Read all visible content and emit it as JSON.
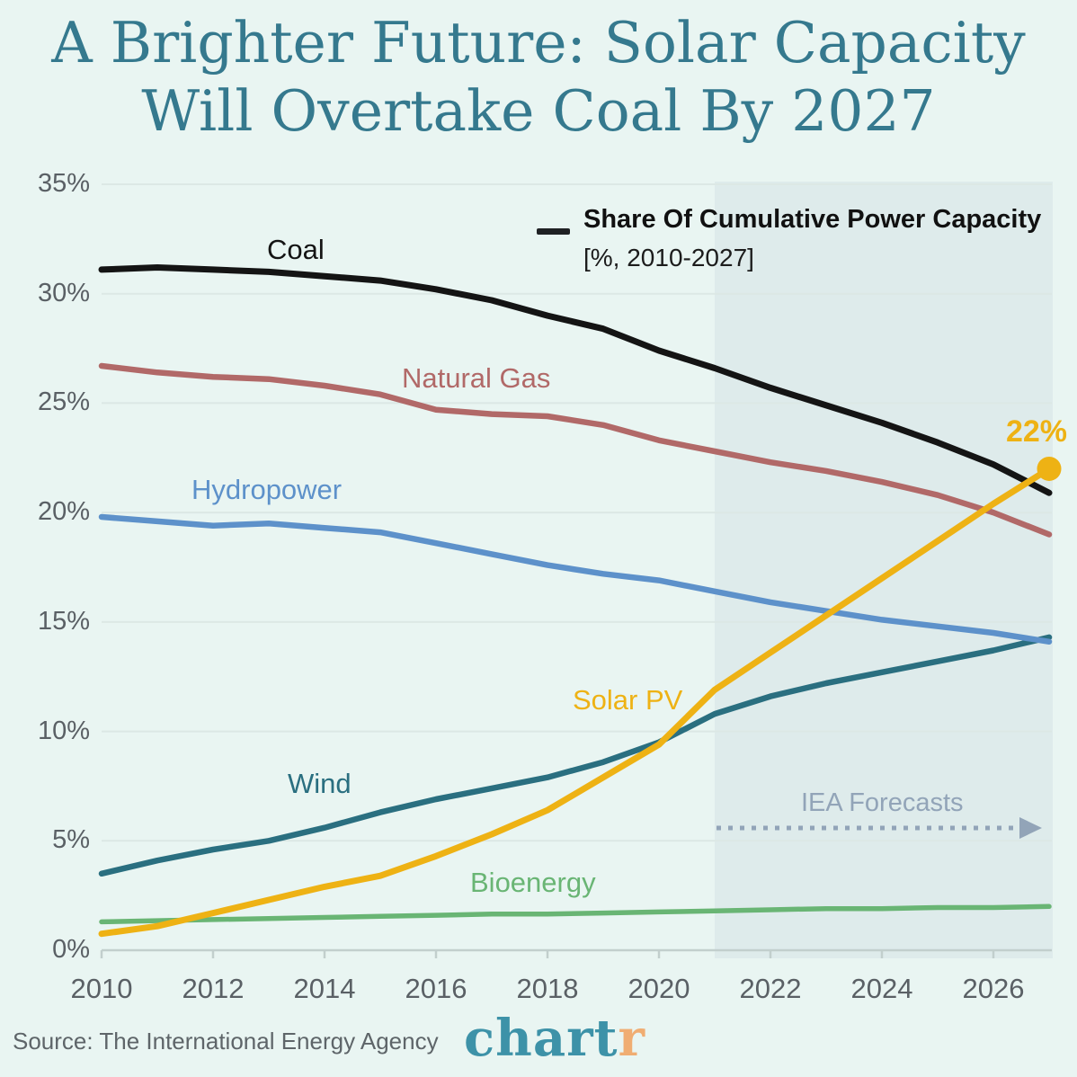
{
  "title": {
    "line1": "A Brighter Future: Solar Capacity",
    "line2": "Will Overtake Coal By 2027"
  },
  "legend": {
    "title": "Share Of Cumulative Power Capacity",
    "subtitle": "[%, 2010-2027]"
  },
  "annotations": {
    "forecast_label": "IEA Forecasts",
    "solar_endpoint_label": "22%"
  },
  "footer": {
    "source": "Source: The International Energy Agency",
    "logo_chart": "chart",
    "logo_r": "r"
  },
  "colors": {
    "background": "#e9f5f2",
    "title_text": "#35798e",
    "tick_text": "#5a6065",
    "grid": "#dce8e5",
    "axis": "#c2cfcd",
    "forecast_band": "#6e93a6",
    "forecast_text": "#92a4b8",
    "source_text": "#5e6569",
    "logo_chart": "#3d92a8",
    "logo_r": "#f0ad72"
  },
  "chart_data": {
    "type": "line",
    "title": "Share Of Cumulative Power Capacity [%, 2010-2027]",
    "xlabel": "",
    "ylabel": "",
    "x_range": [
      2010,
      2027
    ],
    "ylim": [
      0,
      35
    ],
    "grid": true,
    "legend_position": "top-right",
    "forecast_start": 2021,
    "x": [
      2010,
      2011,
      2012,
      2013,
      2014,
      2015,
      2016,
      2017,
      2018,
      2019,
      2020,
      2021,
      2022,
      2023,
      2024,
      2025,
      2026,
      2027
    ],
    "x_ticks": [
      2010,
      2012,
      2014,
      2016,
      2018,
      2020,
      2022,
      2024,
      2026
    ],
    "y_ticks": [
      35,
      30,
      25,
      20,
      15,
      10,
      5,
      0
    ],
    "y_tick_suffix": "%",
    "series": [
      {
        "name": "Coal",
        "color": "#141414",
        "width": 7,
        "values": [
          31.1,
          31.2,
          31.1,
          31.0,
          30.8,
          30.6,
          30.2,
          29.7,
          29.0,
          28.4,
          27.4,
          26.6,
          25.7,
          24.9,
          24.1,
          23.2,
          22.2,
          20.9
        ]
      },
      {
        "name": "Natural Gas",
        "color": "#b16968",
        "width": 6.5,
        "values": [
          26.7,
          26.4,
          26.2,
          26.1,
          25.8,
          25.4,
          24.7,
          24.5,
          24.4,
          24.0,
          23.3,
          22.8,
          22.3,
          21.9,
          21.4,
          20.8,
          20.0,
          19.0
        ]
      },
      {
        "name": "Wind",
        "color": "#2a6f80",
        "width": 6.5,
        "values": [
          3.5,
          4.1,
          4.6,
          5.0,
          5.6,
          6.3,
          6.9,
          7.4,
          7.9,
          8.6,
          9.5,
          10.8,
          11.6,
          12.2,
          12.7,
          13.2,
          13.7,
          14.3
        ]
      },
      {
        "name": "Bioenergy",
        "color": "#69b574",
        "width": 5.5,
        "values": [
          1.3,
          1.35,
          1.4,
          1.45,
          1.5,
          1.55,
          1.6,
          1.65,
          1.65,
          1.7,
          1.75,
          1.8,
          1.85,
          1.9,
          1.9,
          1.95,
          1.95,
          2.0
        ]
      },
      {
        "name": "Hydropower",
        "color": "#5d91ca",
        "width": 6.5,
        "values": [
          19.8,
          19.6,
          19.4,
          19.5,
          19.3,
          19.1,
          18.6,
          18.1,
          17.6,
          17.2,
          16.9,
          16.4,
          15.9,
          15.5,
          15.1,
          14.8,
          14.5,
          14.1
        ]
      },
      {
        "name": "Solar PV",
        "color": "#eeb214",
        "width": 7,
        "end_dot": true,
        "values": [
          0.75,
          1.1,
          1.7,
          2.3,
          2.9,
          3.4,
          4.3,
          5.3,
          6.4,
          7.9,
          9.4,
          11.9,
          13.6,
          15.3,
          17.0,
          18.7,
          20.4,
          22.0
        ]
      }
    ]
  }
}
